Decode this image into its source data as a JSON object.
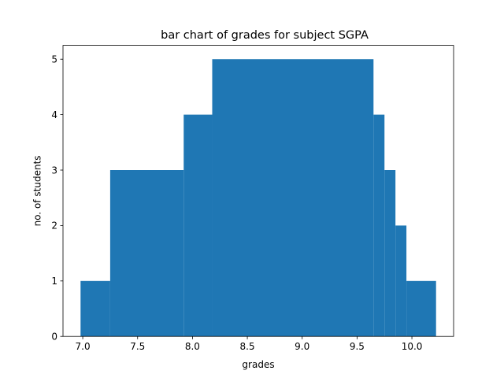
{
  "chart_data": {
    "type": "bar",
    "title": "bar chart of grades for subject SGPA",
    "xlabel": "grades",
    "ylabel": "no. of students",
    "xlim": [
      6.82,
      10.38
    ],
    "ylim": [
      0,
      5.25
    ],
    "x_ticks": [
      7.0,
      7.5,
      8.0,
      8.5,
      9.0,
      9.5,
      10.0
    ],
    "x_tick_labels": [
      "7.0",
      "7.5",
      "8.0",
      "8.5",
      "9.0",
      "9.5",
      "10.0"
    ],
    "y_ticks": [
      0,
      1,
      2,
      3,
      4,
      5
    ],
    "y_tick_labels": [
      "0",
      "1",
      "2",
      "3",
      "4",
      "5"
    ],
    "bar_color": "#1f77b4",
    "grid": false,
    "legend": "none",
    "bars": [
      {
        "x_start": 6.98,
        "x_end": 7.25,
        "value": 1
      },
      {
        "x_start": 7.25,
        "x_end": 7.92,
        "value": 3
      },
      {
        "x_start": 7.92,
        "x_end": 8.18,
        "value": 4
      },
      {
        "x_start": 8.18,
        "x_end": 9.65,
        "value": 5
      },
      {
        "x_start": 9.65,
        "x_end": 9.75,
        "value": 4
      },
      {
        "x_start": 9.75,
        "x_end": 9.85,
        "value": 3
      },
      {
        "x_start": 9.85,
        "x_end": 9.95,
        "value": 2
      },
      {
        "x_start": 9.95,
        "x_end": 10.22,
        "value": 1
      }
    ]
  }
}
